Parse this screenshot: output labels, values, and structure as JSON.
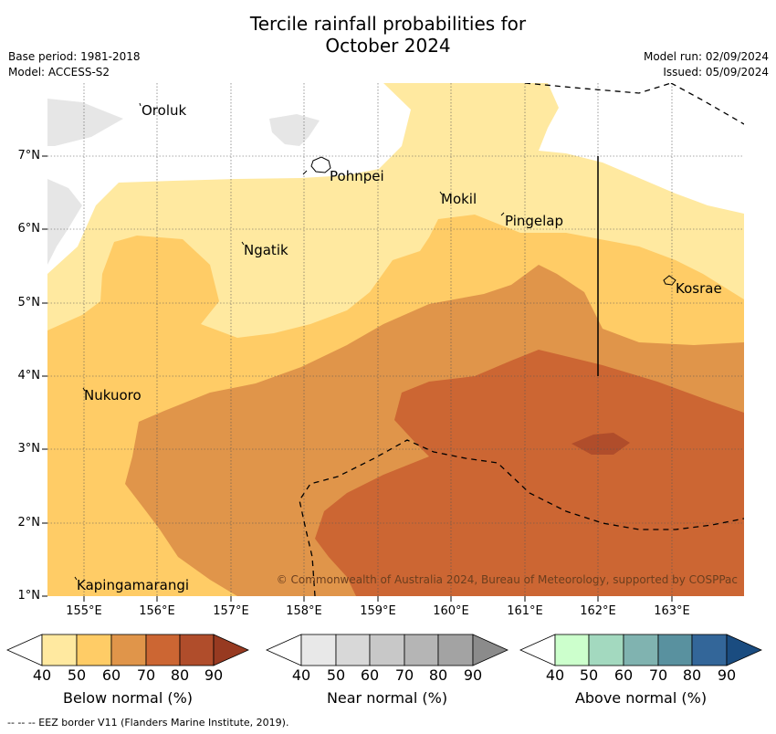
{
  "title": {
    "line1": "Tercile rainfall probabilities for",
    "line2": "October 2024"
  },
  "meta": {
    "base_period": "Base period: 1981-2018",
    "model": "Model: ACCESS-S2",
    "model_run": "Model run: 02/09/2024",
    "issued": "Issued: 05/09/2024"
  },
  "axes": {
    "lat_labels": [
      "7°N",
      "6°N",
      "5°N",
      "4°N",
      "3°N",
      "2°N",
      "1°N"
    ],
    "lon_labels": [
      "155°E",
      "156°E",
      "157°E",
      "158°E",
      "159°E",
      "160°E",
      "161°E",
      "162°E",
      "163°E"
    ]
  },
  "places": [
    "Oroluk",
    "Pohnpei",
    "Mokil",
    "Pingelap",
    "Ngatik",
    "Kosrae",
    "Nukuoro",
    "Kapingamarangi"
  ],
  "copyright": "© Commonwealth of Australia 2024, Bureau of Meteorology, supported by COSPPac",
  "colorbars": {
    "below": {
      "label": "Below normal (%)",
      "colors": [
        "#ffffff",
        "#ffe9a0",
        "#ffcc66",
        "#e0954a",
        "#cc6633",
        "#b04d2b",
        "#973a21"
      ]
    },
    "near": {
      "label": "Near normal (%)",
      "colors": [
        "#ffffff",
        "#e8e8e8",
        "#d8d8d8",
        "#c8c8c8",
        "#b5b5b5",
        "#a3a3a3",
        "#8b8b8b"
      ]
    },
    "above": {
      "label": "Above normal (%)",
      "colors": [
        "#ffffff",
        "#ccffcc",
        "#a3d9bf",
        "#80b3b0",
        "#59919f",
        "#336699",
        "#1a4c80"
      ]
    },
    "ticks": [
      "40",
      "50",
      "60",
      "70",
      "80",
      "90"
    ]
  },
  "footer": "--  --  -- EEZ border V11 (Flanders Marine Institute, 2019)."
}
